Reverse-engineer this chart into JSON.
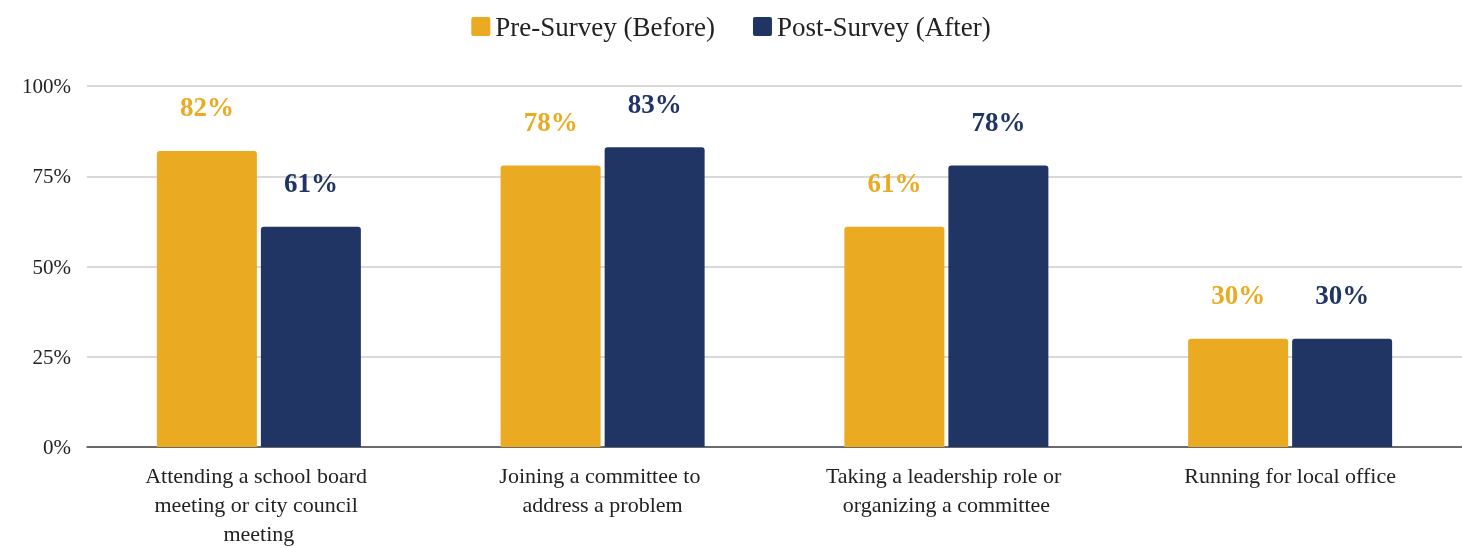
{
  "chart_data": {
    "type": "bar",
    "categories": [
      "Attending a school board meeting or city council meeting",
      "Joining a committee to address a problem",
      "Taking a leadership role or organizing a committee",
      "Running for local office"
    ],
    "series": [
      {
        "name": "Pre-Survey (Before)",
        "color": "#eaaa21",
        "values": [
          82,
          78,
          61,
          30
        ],
        "value_labels": [
          "82%",
          "78%",
          "61%",
          "30%"
        ]
      },
      {
        "name": "Post-Survey (After)",
        "color": "#203564",
        "values": [
          61,
          83,
          78,
          30
        ],
        "value_labels": [
          "61%",
          "83%",
          "78%",
          "30%"
        ]
      }
    ],
    "ylim": [
      0,
      100
    ],
    "yticks": [
      {
        "value": 0,
        "label": "0%"
      },
      {
        "value": 25,
        "label": "25%"
      },
      {
        "value": 50,
        "label": "50%"
      },
      {
        "value": 75,
        "label": "75%"
      },
      {
        "value": 100,
        "label": "100%"
      }
    ],
    "grid": "y",
    "legend": "top"
  }
}
